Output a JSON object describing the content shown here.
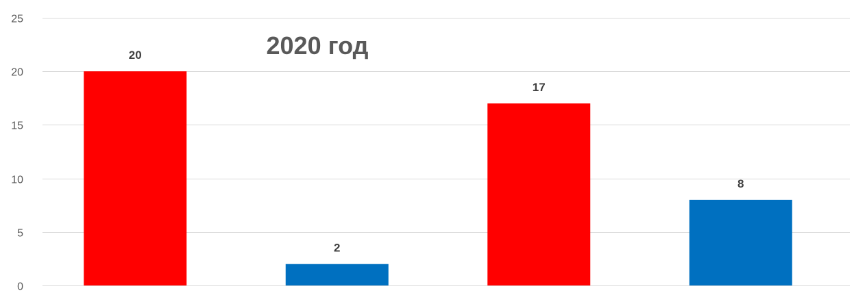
{
  "chart_data": {
    "type": "bar",
    "title": "2020 год",
    "xlabel": "",
    "ylabel": "",
    "categories": [
      "",
      "",
      "",
      ""
    ],
    "values": [
      20,
      2,
      17,
      8
    ],
    "bar_colors": [
      "#ff0000",
      "#0070c0",
      "#ff0000",
      "#0070c0"
    ],
    "ylim": [
      0,
      25
    ],
    "yticks": [
      0,
      5,
      10,
      15,
      20,
      25
    ],
    "grid": true,
    "legend": "none",
    "data_labels": true
  }
}
